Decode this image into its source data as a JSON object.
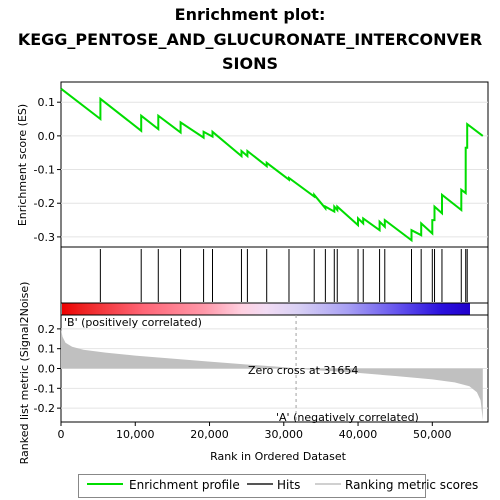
{
  "title_lines": [
    "Enrichment plot:",
    "KEGG_PENTOSE_AND_GLUCURONATE_INTERCONVER",
    "SIONS"
  ],
  "colors": {
    "enrichment_line": "#00dd00",
    "hits": "#000000",
    "metric_fill": "#c0c0c0",
    "positive_label": "#cc0000",
    "negative_label": "#2222cc",
    "zero_cross_line": "#a0a0a0"
  },
  "chart_data": [
    {
      "type": "line",
      "name": "enrichment-profile",
      "ylabel": "Enrichment score (ES)",
      "xlim": [
        0,
        57500
      ],
      "ylim": [
        -0.33,
        0.16
      ],
      "yticks": [
        0.1,
        0.0,
        -0.1,
        -0.2,
        -0.3
      ],
      "ytick_labels": [
        "0.1",
        "0.0",
        "-0.1",
        "-0.2",
        "-0.3"
      ],
      "x": [
        0,
        5300,
        5300,
        10800,
        10800,
        13100,
        13100,
        16100,
        16100,
        19200,
        19200,
        20400,
        20400,
        24300,
        24300,
        25100,
        25100,
        27700,
        27700,
        30700,
        30700,
        34100,
        34100,
        35600,
        35600,
        36800,
        36800,
        37200,
        37200,
        40000,
        40000,
        40700,
        40700,
        42900,
        42900,
        43600,
        43600,
        47200,
        47200,
        48500,
        48500,
        50000,
        50000,
        50300,
        50300,
        51300,
        51300,
        53900,
        53900,
        54500,
        54500,
        54700,
        54700,
        56800
      ],
      "y": [
        0.14,
        0.05,
        0.11,
        0.015,
        0.06,
        0.02,
        0.06,
        0.01,
        0.04,
        -0.005,
        0.012,
        -0.002,
        0.012,
        -0.06,
        -0.045,
        -0.06,
        -0.045,
        -0.09,
        -0.08,
        -0.13,
        -0.125,
        -0.18,
        -0.175,
        -0.215,
        -0.21,
        -0.225,
        -0.21,
        -0.22,
        -0.21,
        -0.265,
        -0.245,
        -0.26,
        -0.245,
        -0.28,
        -0.255,
        -0.27,
        -0.25,
        -0.31,
        -0.28,
        -0.295,
        -0.26,
        -0.29,
        -0.25,
        -0.25,
        -0.21,
        -0.23,
        -0.175,
        -0.22,
        -0.16,
        -0.17,
        -0.035,
        -0.035,
        0.035,
        0.0
      ]
    },
    {
      "type": "scatter",
      "name": "hits",
      "xlim": [
        0,
        57500
      ],
      "x": [
        0,
        5300,
        10800,
        13100,
        16100,
        19200,
        20400,
        24300,
        25100,
        27700,
        30700,
        34100,
        35600,
        36800,
        37200,
        40000,
        40700,
        42900,
        43600,
        47200,
        48500,
        50000,
        50300,
        51300,
        53900,
        54500,
        54700
      ]
    },
    {
      "type": "area",
      "name": "ranked-list-metric",
      "xlabel": "Rank in Ordered Dataset",
      "ylabel": "Ranked list metric (Signal2Noise)",
      "xlim": [
        0,
        57500
      ],
      "ylim": [
        -0.27,
        0.27
      ],
      "xticks": [
        0,
        10000,
        20000,
        30000,
        40000,
        50000
      ],
      "xtick_labels": [
        "0",
        "10,000",
        "20,000",
        "30,000",
        "40,000",
        "50,000"
      ],
      "yticks": [
        0.2,
        0.1,
        0.0,
        -0.1,
        -0.2
      ],
      "ytick_labels": [
        "0.2",
        "0.1",
        "0.0",
        "-0.1",
        "-0.2"
      ],
      "x": [
        0,
        200,
        600,
        1500,
        3000,
        6000,
        10000,
        15000,
        20000,
        25000,
        30000,
        31654,
        35000,
        40000,
        45000,
        50000,
        53000,
        55000,
        56000,
        56500,
        56800
      ],
      "y": [
        0.2,
        0.16,
        0.13,
        0.11,
        0.095,
        0.08,
        0.065,
        0.05,
        0.035,
        0.02,
        0.007,
        0.0,
        -0.01,
        -0.022,
        -0.038,
        -0.055,
        -0.07,
        -0.09,
        -0.12,
        -0.16,
        -0.26
      ],
      "zero_cross": 31654,
      "zero_cross_label": "Zero cross at 31654",
      "positive_label": "'B' (positively correlated)",
      "negative_label": "'A' (negatively correlated)"
    }
  ],
  "legend": {
    "enrichment_profile": "Enrichment profile",
    "hits": "Hits",
    "ranking_metric_scores": "Ranking metric scores"
  }
}
